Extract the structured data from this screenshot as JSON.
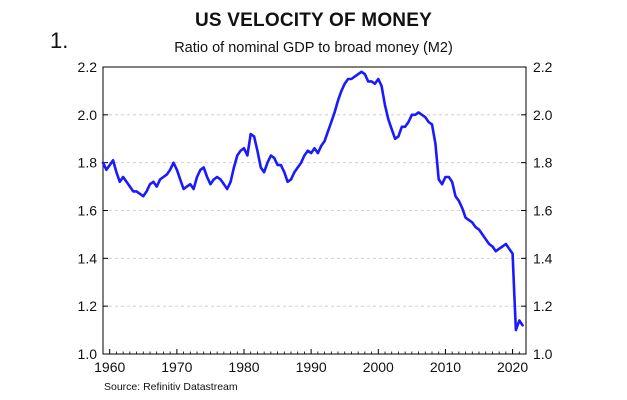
{
  "figure_number": "1.",
  "chart_data": {
    "type": "line",
    "title": "US VELOCITY OF MONEY",
    "subtitle": "Ratio of nominal GDP to broad money (M2)",
    "source": "Source: Refinitiv Datastream",
    "xlabel": "",
    "ylabel": "",
    "xlim": [
      1959,
      2022
    ],
    "ylim": [
      1.0,
      2.2
    ],
    "x_ticks": [
      1960,
      1970,
      1980,
      1990,
      2000,
      2010,
      2020
    ],
    "y_ticks": [
      "1.0",
      "1.2",
      "1.4",
      "1.6",
      "1.8",
      "2.0",
      "2.2"
    ],
    "grid": true,
    "right_axis": true,
    "color": "#1a1aff",
    "series": [
      {
        "x": [
          1959,
          1959.5,
          1960,
          1960.5,
          1961,
          1961.5,
          1962,
          1962.5,
          1963,
          1963.5,
          1964,
          1964.5,
          1965,
          1965.5,
          1966,
          1966.5,
          1967,
          1967.5,
          1968,
          1968.5,
          1969,
          1969.5,
          1970,
          1970.5,
          1971,
          1971.5,
          1972,
          1972.5,
          1973,
          1973.5,
          1974,
          1974.5,
          1975,
          1975.5,
          1976,
          1976.5,
          1977,
          1977.5,
          1978,
          1978.5,
          1979,
          1979.5,
          1980,
          1980.5,
          1981,
          1981.5,
          1982,
          1982.5,
          1983,
          1983.5,
          1984,
          1984.5,
          1985,
          1985.5,
          1986,
          1986.5,
          1987,
          1987.5,
          1988,
          1988.5,
          1989,
          1989.5,
          1990,
          1990.5,
          1991,
          1991.5,
          1992,
          1992.5,
          1993,
          1993.5,
          1994,
          1994.5,
          1995,
          1995.5,
          1996,
          1996.5,
          1997,
          1997.5,
          1998,
          1998.5,
          1999,
          1999.5,
          2000,
          2000.5,
          2001,
          2001.5,
          2002,
          2002.5,
          2003,
          2003.5,
          2004,
          2004.5,
          2005,
          2005.5,
          2006,
          2006.5,
          2007,
          2007.5,
          2008,
          2008.5,
          2009,
          2009.5,
          2010,
          2010.5,
          2011,
          2011.5,
          2012,
          2012.5,
          2013,
          2013.5,
          2014,
          2014.5,
          2015,
          2015.5,
          2016,
          2016.5,
          2017,
          2017.5,
          2018,
          2018.5,
          2019,
          2019.5,
          2020,
          2020.25,
          2020.5,
          2021,
          2021.5
        ],
        "y": [
          1.8,
          1.77,
          1.79,
          1.81,
          1.76,
          1.72,
          1.74,
          1.72,
          1.7,
          1.68,
          1.68,
          1.67,
          1.66,
          1.68,
          1.71,
          1.72,
          1.7,
          1.73,
          1.74,
          1.75,
          1.77,
          1.8,
          1.77,
          1.73,
          1.69,
          1.7,
          1.71,
          1.69,
          1.74,
          1.77,
          1.78,
          1.74,
          1.71,
          1.73,
          1.74,
          1.73,
          1.71,
          1.69,
          1.72,
          1.78,
          1.83,
          1.85,
          1.86,
          1.83,
          1.92,
          1.91,
          1.85,
          1.78,
          1.76,
          1.8,
          1.83,
          1.82,
          1.79,
          1.79,
          1.76,
          1.72,
          1.73,
          1.76,
          1.78,
          1.8,
          1.83,
          1.85,
          1.84,
          1.86,
          1.84,
          1.87,
          1.89,
          1.93,
          1.97,
          2.01,
          2.06,
          2.1,
          2.13,
          2.15,
          2.15,
          2.16,
          2.17,
          2.18,
          2.17,
          2.14,
          2.14,
          2.13,
          2.15,
          2.12,
          2.04,
          1.98,
          1.94,
          1.9,
          1.91,
          1.95,
          1.95,
          1.97,
          2.0,
          2.0,
          2.01,
          2.0,
          1.99,
          1.97,
          1.96,
          1.88,
          1.73,
          1.71,
          1.74,
          1.74,
          1.72,
          1.66,
          1.64,
          1.61,
          1.57,
          1.56,
          1.55,
          1.53,
          1.52,
          1.5,
          1.48,
          1.46,
          1.45,
          1.43,
          1.44,
          1.45,
          1.46,
          1.44,
          1.42,
          1.25,
          1.1,
          1.14,
          1.12
        ]
      }
    ]
  }
}
